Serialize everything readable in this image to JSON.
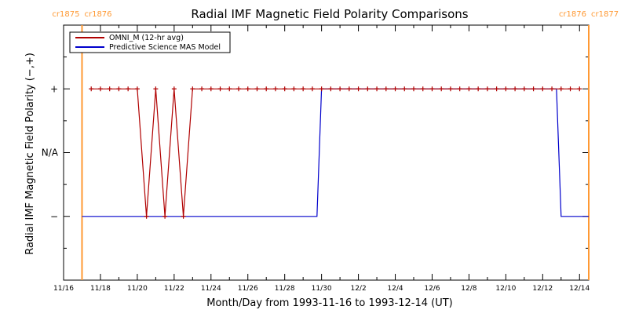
{
  "chart_data": {
    "type": "line",
    "title": "Radial IMF Magnetic Field Polarity Comparisons",
    "xlabel": "Month/Day from 1993-11-16 to 1993-12-14 (UT)",
    "ylabel": "Radial IMF Magnetic Field Polarity (−,+)",
    "x_range": [
      "1993-11-16",
      "1993-12-14T12:00"
    ],
    "x_ticks": [
      "11/16",
      "11/18",
      "11/20",
      "11/22",
      "11/24",
      "11/26",
      "11/28",
      "11/30",
      "12/2",
      "12/4",
      "12/6",
      "12/8",
      "12/10",
      "12/12",
      "12/14"
    ],
    "y_ticks": [
      "−",
      "N/A",
      "+"
    ],
    "y_values": [
      -1,
      0,
      1
    ],
    "y_range": [
      -2,
      2
    ],
    "carrington_markers": [
      {
        "time": "1993-11-17T00:00",
        "left_label": "cr1875",
        "right_label": "cr1876",
        "color": "#ff9933"
      },
      {
        "time": "1993-12-14T12:00",
        "left_label": "cr1876",
        "right_label": "cr1877",
        "color": "#ff9933"
      }
    ],
    "series": [
      {
        "name": "OMNI_M (12-hr avg)",
        "color": "#b00000",
        "marker": "plus",
        "x": [
          "1993-11-17T12:00",
          "1993-11-18T00:00",
          "1993-11-18T12:00",
          "1993-11-19T00:00",
          "1993-11-19T12:00",
          "1993-11-20T00:00",
          "1993-11-20T12:00",
          "1993-11-21T00:00",
          "1993-11-21T12:00",
          "1993-11-22T00:00",
          "1993-11-22T12:00",
          "1993-11-23T00:00",
          "1993-11-23T12:00",
          "1993-11-24T00:00",
          "1993-11-24T12:00",
          "1993-11-25T00:00",
          "1993-11-25T12:00",
          "1993-11-26T00:00",
          "1993-11-26T12:00",
          "1993-11-27T00:00",
          "1993-11-27T12:00",
          "1993-11-28T00:00",
          "1993-11-28T12:00",
          "1993-11-29T00:00",
          "1993-11-29T12:00",
          "1993-11-30T00:00",
          "1993-11-30T12:00",
          "1993-12-01T00:00",
          "1993-12-01T12:00",
          "1993-12-02T00:00",
          "1993-12-02T12:00",
          "1993-12-03T00:00",
          "1993-12-03T12:00",
          "1993-12-04T00:00",
          "1993-12-04T12:00",
          "1993-12-05T00:00",
          "1993-12-05T12:00",
          "1993-12-06T00:00",
          "1993-12-06T12:00",
          "1993-12-07T00:00",
          "1993-12-07T12:00",
          "1993-12-08T00:00",
          "1993-12-08T12:00",
          "1993-12-09T00:00",
          "1993-12-09T12:00",
          "1993-12-10T00:00",
          "1993-12-10T12:00",
          "1993-12-11T00:00",
          "1993-12-11T12:00",
          "1993-12-12T00:00",
          "1993-12-12T12:00",
          "1993-12-13T00:00",
          "1993-12-13T12:00",
          "1993-12-14T00:00"
        ],
        "y": [
          1,
          1,
          1,
          1,
          1,
          1,
          -1,
          1,
          -1,
          1,
          -1,
          1,
          1,
          1,
          1,
          1,
          1,
          1,
          1,
          1,
          1,
          1,
          1,
          1,
          1,
          1,
          1,
          1,
          1,
          1,
          1,
          1,
          1,
          1,
          1,
          1,
          1,
          1,
          1,
          1,
          1,
          1,
          1,
          1,
          1,
          1,
          1,
          1,
          1,
          1,
          1,
          1,
          1,
          1
        ]
      },
      {
        "name": "Predictive Science MAS Model",
        "color": "#0000cc",
        "marker": "none",
        "x": [
          "1993-11-17T00:00",
          "1993-11-29T18:00",
          "1993-11-30T00:00",
          "1993-12-12T18:00",
          "1993-12-13T00:00",
          "1993-12-14T12:00"
        ],
        "y": [
          -1,
          -1,
          1,
          1,
          -1,
          -1
        ]
      }
    ],
    "legend": "top-left",
    "grid": false
  }
}
